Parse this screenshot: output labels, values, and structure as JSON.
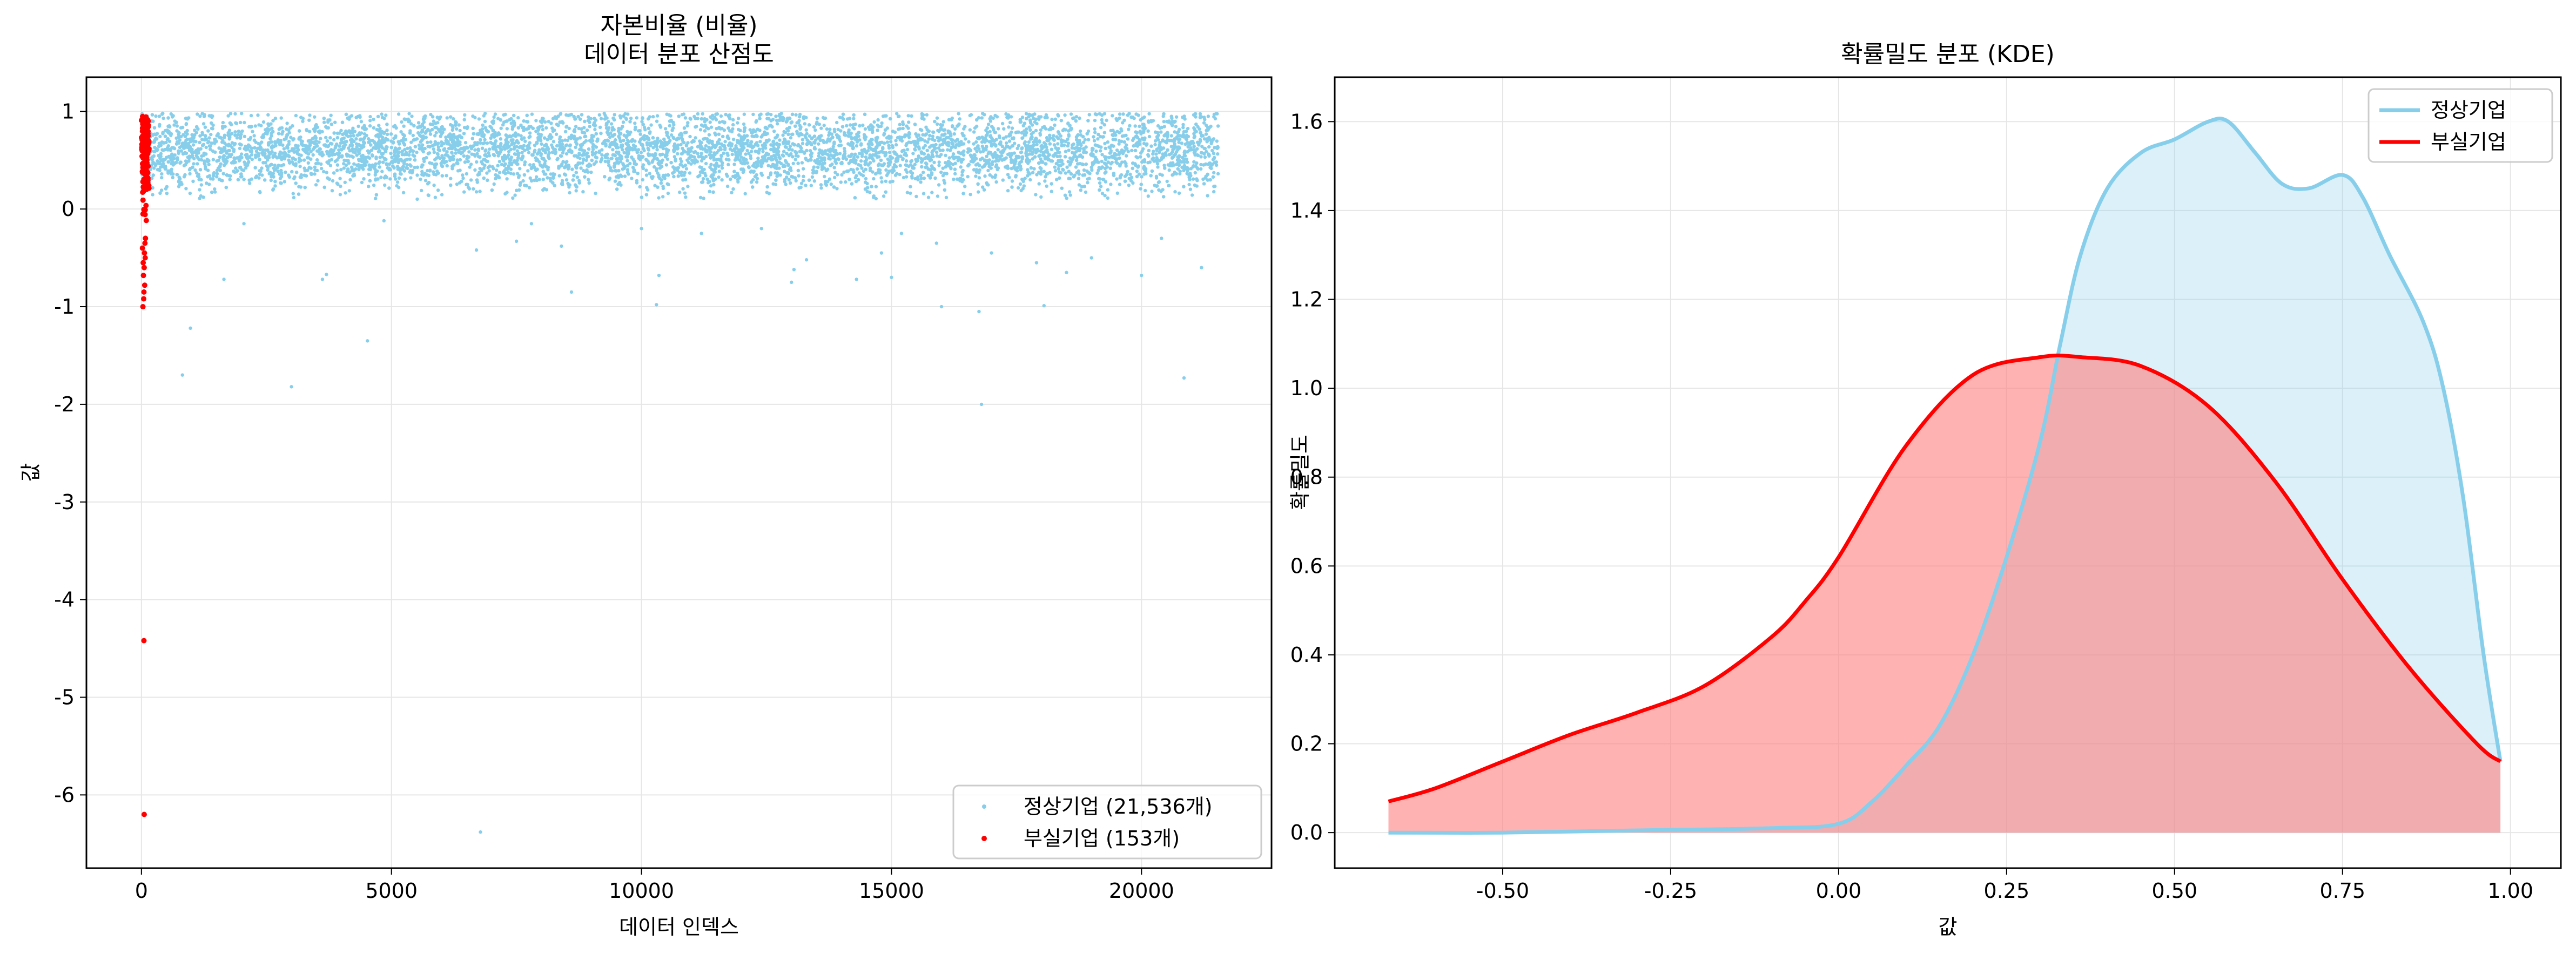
{
  "chart_data": [
    {
      "type": "scatter",
      "title_line1": "자본비율 (비율)",
      "title_line2": "데이터 분포 산점도",
      "xlabel": "데이터 인덱스",
      "ylabel": "값",
      "xlim": [
        -1100,
        22600
      ],
      "ylim": [
        -6.75,
        1.35
      ],
      "xticks": [
        0,
        5000,
        10000,
        15000,
        20000
      ],
      "yticks": [
        1,
        0,
        -1,
        -2,
        -3,
        -4,
        -5,
        -6
      ],
      "grid": true,
      "legend_position": "lower-right",
      "series": [
        {
          "name": "정상기업 (21,536개)",
          "color": "#87ceeb",
          "count": 21536,
          "x_range": [
            0,
            21536
          ],
          "main_band": [
            0.15,
            0.98
          ],
          "outliers": [
            [
              820,
              -1.7
            ],
            [
              980,
              -1.22
            ],
            [
              1650,
              -0.72
            ],
            [
              2050,
              -0.15
            ],
            [
              3000,
              -1.82
            ],
            [
              3620,
              -0.72
            ],
            [
              3700,
              -0.67
            ],
            [
              4520,
              -1.35
            ],
            [
              4850,
              -0.12
            ],
            [
              6700,
              -0.42
            ],
            [
              6780,
              -6.38
            ],
            [
              7500,
              -0.33
            ],
            [
              7800,
              -0.15
            ],
            [
              8400,
              -0.38
            ],
            [
              8600,
              -0.85
            ],
            [
              10000,
              -0.2
            ],
            [
              10300,
              -0.98
            ],
            [
              10350,
              -0.68
            ],
            [
              11200,
              -0.25
            ],
            [
              12400,
              -0.2
            ],
            [
              13000,
              -0.75
            ],
            [
              13050,
              -0.62
            ],
            [
              13300,
              -0.52
            ],
            [
              14300,
              -0.72
            ],
            [
              14800,
              -0.45
            ],
            [
              15000,
              -0.7
            ],
            [
              15200,
              -0.25
            ],
            [
              15900,
              -0.35
            ],
            [
              16000,
              -1.0
            ],
            [
              16750,
              -1.05
            ],
            [
              16800,
              -2.0
            ],
            [
              17000,
              -0.45
            ],
            [
              17900,
              -0.55
            ],
            [
              18050,
              -0.99
            ],
            [
              18500,
              -0.65
            ],
            [
              19000,
              -0.5
            ],
            [
              20000,
              -0.68
            ],
            [
              20400,
              -0.3
            ],
            [
              20850,
              -1.73
            ],
            [
              21200,
              -0.6
            ]
          ]
        },
        {
          "name": "부실기업 (153개)",
          "color": "#ff0000",
          "count": 153,
          "x_range": [
            0,
            153
          ],
          "main_band": [
            -0.15,
            0.95
          ],
          "outliers": [
            [
              70,
              -0.35
            ],
            [
              60,
              -0.45
            ],
            [
              55,
              -0.6
            ],
            [
              40,
              -0.68
            ],
            [
              65,
              -0.78
            ],
            [
              50,
              -0.85
            ],
            [
              45,
              -0.92
            ],
            [
              30,
              -1.0
            ],
            [
              80,
              -0.3
            ],
            [
              35,
              -0.55
            ],
            [
              20,
              -0.4
            ],
            [
              75,
              -0.5
            ],
            [
              50,
              -4.42
            ],
            [
              55,
              -6.2
            ]
          ]
        }
      ]
    },
    {
      "type": "line",
      "title": "확률밀도 분포 (KDE)",
      "xlabel": "값",
      "ylabel": "확률밀도",
      "xlim": [
        -0.75,
        1.075
      ],
      "ylim": [
        -0.08,
        1.7
      ],
      "xticks": [
        -0.5,
        -0.25,
        0.0,
        0.25,
        0.5,
        0.75,
        1.0
      ],
      "xtick_labels": [
        "-0.50",
        "-0.25",
        "0.00",
        "0.25",
        "0.50",
        "0.75",
        "1.00"
      ],
      "yticks": [
        0.0,
        0.2,
        0.4,
        0.6,
        0.8,
        1.0,
        1.2,
        1.4,
        1.6
      ],
      "ytick_labels": [
        "0.0",
        "0.2",
        "0.4",
        "0.6",
        "0.8",
        "1.0",
        "1.2",
        "1.4",
        "1.6"
      ],
      "grid": true,
      "legend_position": "upper-right",
      "series": [
        {
          "name": "정상기업",
          "color": "#87ceeb",
          "fill": "#87ceeb",
          "x": [
            -0.67,
            -0.5,
            -0.3,
            -0.1,
            0.0,
            0.05,
            0.1,
            0.15,
            0.2,
            0.25,
            0.3,
            0.33,
            0.36,
            0.4,
            0.45,
            0.5,
            0.55,
            0.58,
            0.62,
            0.66,
            0.7,
            0.75,
            0.78,
            0.82,
            0.87,
            0.9,
            0.93,
            0.96,
            0.985
          ],
          "values": [
            0.0,
            0.0,
            0.005,
            0.01,
            0.02,
            0.07,
            0.15,
            0.24,
            0.4,
            0.62,
            0.88,
            1.1,
            1.3,
            1.45,
            1.53,
            1.56,
            1.6,
            1.6,
            1.53,
            1.46,
            1.45,
            1.48,
            1.43,
            1.3,
            1.15,
            1.0,
            0.75,
            0.4,
            0.16
          ]
        },
        {
          "name": "부실기업",
          "color": "#ff0000",
          "fill": "#ff7f7f",
          "x": [
            -0.67,
            -0.6,
            -0.5,
            -0.4,
            -0.3,
            -0.2,
            -0.1,
            -0.05,
            0.0,
            0.1,
            0.2,
            0.3,
            0.36,
            0.45,
            0.55,
            0.65,
            0.75,
            0.85,
            0.95,
            0.985
          ],
          "values": [
            0.07,
            0.1,
            0.16,
            0.22,
            0.27,
            0.33,
            0.44,
            0.52,
            0.62,
            0.87,
            1.03,
            1.07,
            1.07,
            1.05,
            0.96,
            0.79,
            0.57,
            0.37,
            0.2,
            0.16
          ]
        }
      ]
    }
  ]
}
